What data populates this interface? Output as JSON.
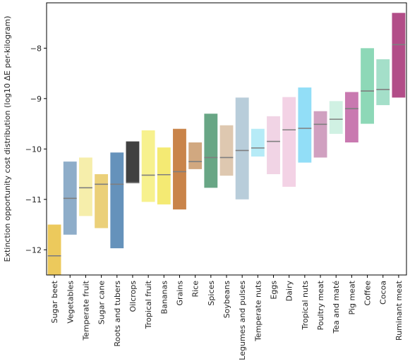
{
  "chart_data": {
    "type": "bar",
    "subtype": "floating-range-with-median",
    "ylabel": "Extinction opportunity cost distribution (log10 ΔE per-kilogram)",
    "xlabel": "",
    "ylim": [
      -12.5,
      -7.1
    ],
    "yticks": [
      -12,
      -11,
      -10,
      -9,
      -8
    ],
    "grid": false,
    "legend": "none",
    "categories": [
      "Sugar beet",
      "Vegetables",
      "Temperate fruit",
      "Sugar cane",
      "Roots and tubers",
      "Oilcrops",
      "Tropical fruit",
      "Bananas",
      "Grains",
      "Rice",
      "Spices",
      "Soybeans",
      "Legumes and pulses",
      "Temperate nuts",
      "Eggs",
      "Dairy",
      "Tropical nuts",
      "Poultry meat",
      "Tea and maté",
      "Pig meat",
      "Coffee",
      "Cocoa",
      "Ruminant meat"
    ],
    "low": [
      -12.5,
      -11.7,
      -11.33,
      -11.57,
      -11.97,
      -10.68,
      -11.05,
      -11.1,
      -11.2,
      -10.4,
      -10.77,
      -10.53,
      -11.0,
      -10.15,
      -10.5,
      -10.75,
      -10.27,
      -10.17,
      -9.7,
      -9.87,
      -9.5,
      -9.13,
      -8.98
    ],
    "high": [
      -11.5,
      -10.25,
      -10.17,
      -10.5,
      -10.07,
      -9.85,
      -9.63,
      -9.97,
      -9.6,
      -9.87,
      -9.3,
      -9.53,
      -8.98,
      -9.6,
      -9.35,
      -8.97,
      -8.78,
      -9.25,
      -9.05,
      -8.87,
      -8.0,
      -8.22,
      -7.3
    ],
    "median": [
      -12.12,
      -10.98,
      -10.77,
      -10.7,
      -10.7,
      -10.67,
      -10.52,
      -10.51,
      -10.45,
      -10.25,
      -10.17,
      -10.17,
      -10.03,
      -9.98,
      -9.85,
      -9.62,
      -9.59,
      -9.51,
      -9.41,
      -9.2,
      -8.85,
      -8.82,
      -7.93
    ],
    "colors": [
      "#e9c040",
      "#7a9fc0",
      "#f5eb9c",
      "#e8c862",
      "#4a7faf",
      "#202020",
      "#f6ee7a",
      "#f2e65a",
      "#c06e2a",
      "#c9996a",
      "#4e9670",
      "#d8bea2",
      "#acc4d3",
      "#a9e7f6",
      "#efcde1",
      "#f1cae0",
      "#7fd8f6",
      "#c88fb5",
      "#c8efde",
      "#c061a2",
      "#79d1aa",
      "#94d9c0",
      "#a52e73"
    ],
    "median_color": "#7f7f7f"
  }
}
